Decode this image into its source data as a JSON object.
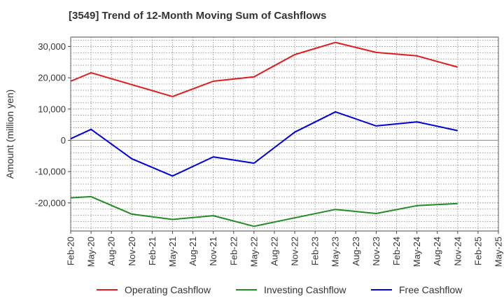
{
  "chart_data": {
    "type": "line",
    "title": "[3549]  Trend of 12-Month Moving Sum of Cashflows",
    "xlabel": "",
    "ylabel": "Amount (million yen)",
    "categories": [
      "Feb-20",
      "May-20",
      "Aug-20",
      "Nov-20",
      "Feb-21",
      "May-21",
      "Aug-21",
      "Nov-21",
      "Feb-22",
      "May-22",
      "Aug-22",
      "Nov-22",
      "Feb-23",
      "May-23",
      "Aug-23",
      "Nov-23",
      "Feb-24",
      "May-24",
      "Aug-24",
      "Nov-24",
      "Feb-25",
      "May-25"
    ],
    "ylim": [
      -29000,
      33000
    ],
    "yticks": [
      -20000,
      -10000,
      0,
      10000,
      20000,
      30000
    ],
    "ytick_labels": [
      "-20,000",
      "-10,000",
      "0",
      "10,000",
      "20,000",
      "30,000"
    ],
    "grid": true,
    "legend_position": "bottom",
    "series": [
      {
        "name": "Operating Cashflow",
        "color": "#e31a1c",
        "values": [
          18900,
          21600,
          null,
          17800,
          null,
          14000,
          null,
          18900,
          null,
          20300,
          null,
          27400,
          null,
          31300,
          null,
          28100,
          null,
          27000,
          null,
          23400,
          null,
          null
        ]
      },
      {
        "name": "Investing Cashflow",
        "color": "#228b22",
        "values": [
          -18400,
          -18000,
          null,
          -23600,
          null,
          -25300,
          null,
          -24100,
          null,
          -27500,
          null,
          -24800,
          null,
          -22100,
          null,
          -23400,
          null,
          -20900,
          null,
          -20200,
          null,
          null
        ]
      },
      {
        "name": "Free Cashflow",
        "color": "#0000dd",
        "values": [
          500,
          3500,
          null,
          -5900,
          null,
          -11400,
          null,
          -5300,
          null,
          -7300,
          null,
          2600,
          null,
          9100,
          null,
          4600,
          null,
          5900,
          null,
          3100,
          null,
          null
        ]
      }
    ]
  }
}
